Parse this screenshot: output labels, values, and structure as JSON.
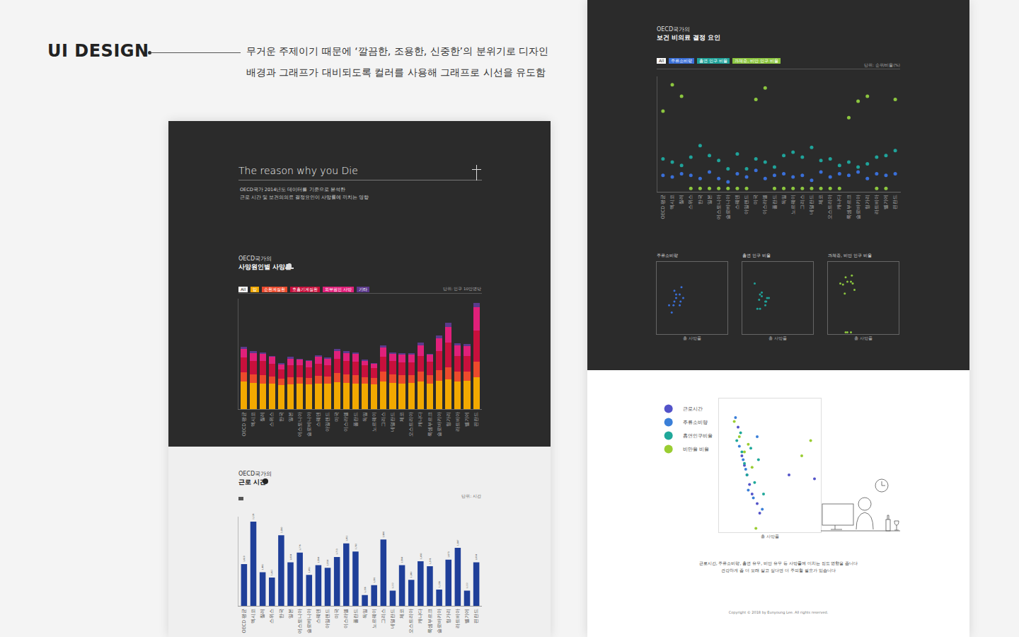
{
  "header": {
    "title": "UI DESIGN",
    "description": [
      "무거운 주제이기 때문에 ‘깔끔한, 조용한, 신중한’의 분위기로 디자인",
      "배경과 그래프가 대비되도록 컬러를 사용해 그래프로 시선을 유도함"
    ]
  },
  "left_page": {
    "title": "The reason why you Die",
    "intro": [
      "OECD국가 2014년도 데이터를 기준으로 분석한",
      "근로 시간 및 보건의의료 결정요인이 사망률에 끼치는 영향"
    ]
  },
  "right_page": {
    "closing": [
      "근로시간, 주류소비량, 흡연 유무, 비만 유무 등 사망률에 미치는 정도 영향을 줍니다",
      "건강하게 좀 더 오래 살고 싶다면 더 주의할 필요가 있습니다"
    ],
    "copyright": "Copyright © 2018 by Eunyoung Lee. All rights reserved."
  },
  "chart_data": [
    {
      "type": "bar",
      "subtitle": "OECD국가의",
      "title": "사망원인별 사망률",
      "all_button": "All",
      "unit": "단위: 인구 10만명당",
      "stacked": true,
      "tick_labels": "x",
      "grid": false,
      "categories": [
        "OECD 평균",
        "멕시코",
        "칠레",
        "스위스",
        "한국",
        "일본",
        "에스토니아",
        "슬로베니아",
        "스웨덴",
        "아일랜드",
        "미국",
        "이스라엘",
        "폴란드",
        "독일",
        "노르웨이",
        "그리스",
        "네덜란드",
        "체코",
        "오스트리아",
        "캐나다",
        "룩셈부르크",
        "슬로바키아",
        "헝가리",
        "라트비아",
        "벨기에",
        "핀란드"
      ],
      "ylim": [
        0,
        1050
      ],
      "series": [
        {
          "name": "암",
          "color": "#f2a900",
          "values": [
            260,
            250,
            245,
            240,
            230,
            235,
            240,
            235,
            245,
            240,
            255,
            250,
            245,
            240,
            235,
            265,
            250,
            245,
            250,
            260,
            245,
            270,
            280,
            265,
            270,
            300
          ]
        },
        {
          "name": "순환계질환",
          "color": "#ec4a2c",
          "values": [
            90,
            80,
            80,
            70,
            60,
            70,
            65,
            60,
            70,
            70,
            85,
            80,
            75,
            65,
            60,
            90,
            80,
            75,
            75,
            95,
            80,
            100,
            120,
            90,
            85,
            150
          ]
        },
        {
          "name": "호흡기계질환",
          "color": "#c8103c",
          "values": [
            140,
            130,
            130,
            120,
            90,
            115,
            110,
            105,
            115,
            110,
            135,
            130,
            130,
            110,
            95,
            140,
            125,
            125,
            120,
            150,
            125,
            180,
            230,
            150,
            150,
            300
          ]
        },
        {
          "name": "외부원인 사망",
          "color": "#e0207a",
          "values": [
            80,
            75,
            70,
            65,
            45,
            60,
            55,
            55,
            65,
            60,
            80,
            75,
            75,
            45,
            40,
            90,
            70,
            70,
            70,
            100,
            65,
            120,
            150,
            100,
            95,
            220
          ]
        },
        {
          "name": "기타",
          "color": "#5b3a8c",
          "values": [
            20,
            15,
            15,
            10,
            10,
            15,
            10,
            10,
            15,
            10,
            20,
            15,
            15,
            10,
            10,
            20,
            15,
            15,
            15,
            25,
            10,
            30,
            40,
            20,
            20,
            40
          ]
        }
      ]
    },
    {
      "type": "bar",
      "subtitle": "OECD국가의",
      "title": "근로 시간",
      "unit": "단위: 시간",
      "tick_labels": "x",
      "grid": false,
      "data_labels": true,
      "color": "#1f3f99",
      "categories": [
        "OECD 평균",
        "멕시코",
        "칠레",
        "스위스",
        "한국",
        "일본",
        "에스토니아",
        "슬로베니아",
        "스웨덴",
        "아일랜드",
        "미국",
        "이스라엘",
        "폴란드",
        "독일",
        "노르웨이",
        "그리스",
        "네덜란드",
        "체코",
        "오스트리아",
        "캐나다",
        "룩셈부르크",
        "슬로바키아",
        "헝가리",
        "라트비아",
        "벨기에",
        "핀란드"
      ],
      "ylim": [
        1000,
        2300
      ],
      "values": [
        1610,
        2228,
        1491,
        1412,
        2030,
        1634,
        1776,
        1451,
        1594,
        1554,
        1713,
        1911,
        1792,
        1158,
        1301,
        1966,
        1222,
        1594,
        1380,
        1650,
        1578,
        1238,
        1673,
        1847,
        1222,
        1634
      ],
      "value_labels": [
        "1,610",
        "2,228",
        "1,491",
        "1,412",
        "2,030",
        "1,634",
        "1,776",
        "1,451",
        "1,594",
        "1,554",
        "1,713",
        "1,911",
        "1,792",
        "1,158",
        "1,301",
        "1,966",
        "1,222",
        "1,594",
        "1,380",
        "1,650",
        "1,578",
        "1,238",
        "1,673",
        "1,847",
        "1,222",
        "1,634"
      ]
    },
    {
      "type": "scatter",
      "subtitle": "OECD국가의",
      "title": "보건 비의료 결정 요인",
      "all_button": "All",
      "unit": "단위: 순위/비율(%)",
      "tick_labels": "x",
      "grid": false,
      "marker": "circle",
      "categories": [
        "OECD 평균",
        "멕시코",
        "칠레",
        "스위스",
        "한국",
        "일본",
        "에스토니아",
        "슬로베니아",
        "스웨덴",
        "아일랜드",
        "미국",
        "이스라엘",
        "폴란드",
        "독일",
        "노르웨이",
        "그리스",
        "네덜란드",
        "체코",
        "오스트리아",
        "캐나다",
        "룩셈부르크",
        "슬로바키아",
        "헝가리",
        "라트비아",
        "벨기에",
        "핀란드"
      ],
      "ylim": [
        0,
        70
      ],
      "series": [
        {
          "name": "주류소비량",
          "color": "#3a6fd8",
          "values": [
            10,
            9,
            11,
            10,
            8,
            12,
            8,
            6,
            11,
            9,
            13,
            8,
            10,
            11,
            9,
            10,
            7,
            12,
            9,
            11,
            10,
            12,
            8,
            11,
            10,
            11
          ]
        },
        {
          "name": "흡연 인구 비율",
          "color": "#1fa39a",
          "values": [
            20,
            18,
            16,
            21,
            28,
            22,
            19,
            14,
            23,
            14,
            20,
            18,
            15,
            22,
            24,
            21,
            27,
            19,
            20,
            16,
            18,
            15,
            17,
            21,
            22,
            25
          ]
        },
        {
          "name": "과체중, 비만 인구 비율",
          "color": "#8cc63f",
          "values": [
            49,
            65,
            58,
            2,
            2,
            2,
            2,
            2,
            2,
            2,
            56,
            63,
            2,
            2,
            2,
            2,
            2,
            2,
            2,
            2,
            45,
            55,
            58,
            2,
            2,
            56
          ]
        }
      ]
    },
    {
      "type": "scatter",
      "title": "주류소비량",
      "xlabel": "총 사망률",
      "tick_labels": false,
      "marker": "circle",
      "color": "#3a6fd8",
      "xlim": [
        300,
        1100
      ],
      "ylim": [
        0,
        20
      ],
      "x": [
        600,
        570,
        560,
        520,
        440,
        500,
        490,
        470,
        520,
        500,
        580,
        560
      ],
      "values": [
        10,
        9,
        11,
        10,
        8,
        12,
        8,
        6,
        11,
        9,
        13,
        8
      ]
    },
    {
      "type": "scatter",
      "title": "흡연 인구 비율",
      "xlabel": "총 사망률",
      "tick_labels": false,
      "marker": "circle",
      "color": "#1fa39a",
      "xlim": [
        300,
        1100
      ],
      "ylim": [
        0,
        40
      ],
      "x": [
        600,
        570,
        560,
        520,
        440,
        500,
        490,
        470,
        520,
        500,
        580,
        560
      ],
      "values": [
        20,
        18,
        16,
        21,
        28,
        22,
        19,
        14,
        23,
        14,
        20,
        18
      ]
    },
    {
      "type": "scatter",
      "title": "과체중, 비만 인구 비율",
      "xlabel": "총 사망률",
      "tick_labels": false,
      "marker": "circle",
      "color": "#8cc63f",
      "xlim": [
        300,
        1100
      ],
      "ylim": [
        0,
        80
      ],
      "x": [
        600,
        570,
        560,
        520,
        440,
        500,
        490,
        470,
        520,
        500,
        580,
        560
      ],
      "values": [
        49,
        65,
        58,
        2,
        56,
        63,
        45,
        55,
        58,
        2,
        56,
        2
      ]
    },
    {
      "type": "scatter",
      "xlabel": "총 사망률",
      "tick_labels": false,
      "marker": "circle",
      "legend": "left",
      "xlim": [
        300,
        1100
      ],
      "ylim": [
        0,
        70
      ],
      "series": [
        {
          "name": "근로시간",
          "color": "#5353c9",
          "x": [
            450,
            480,
            500,
            520,
            540,
            560,
            600,
            620,
            850,
            1050
          ],
          "values": [
            55,
            40,
            35,
            30,
            25,
            20,
            15,
            10,
            30,
            28
          ]
        },
        {
          "name": "주류소비량",
          "color": "#3a7fd8",
          "x": [
            430,
            460,
            490,
            510,
            530,
            570,
            600,
            640
          ],
          "values": [
            60,
            45,
            38,
            33,
            22,
            18,
            50,
            12
          ]
        },
        {
          "name": "흡연인구비율",
          "color": "#20a89a",
          "x": [
            440,
            470,
            480,
            500,
            520,
            550,
            580,
            610,
            650
          ],
          "values": [
            48,
            52,
            42,
            36,
            30,
            44,
            26,
            38,
            20
          ]
        },
        {
          "name": "비만율 비율",
          "color": "#9acd32",
          "x": [
            420,
            460,
            500,
            530,
            560,
            590,
            950,
            1020
          ],
          "values": [
            58,
            50,
            42,
            46,
            34,
            2,
            40,
            48
          ]
        }
      ]
    }
  ]
}
